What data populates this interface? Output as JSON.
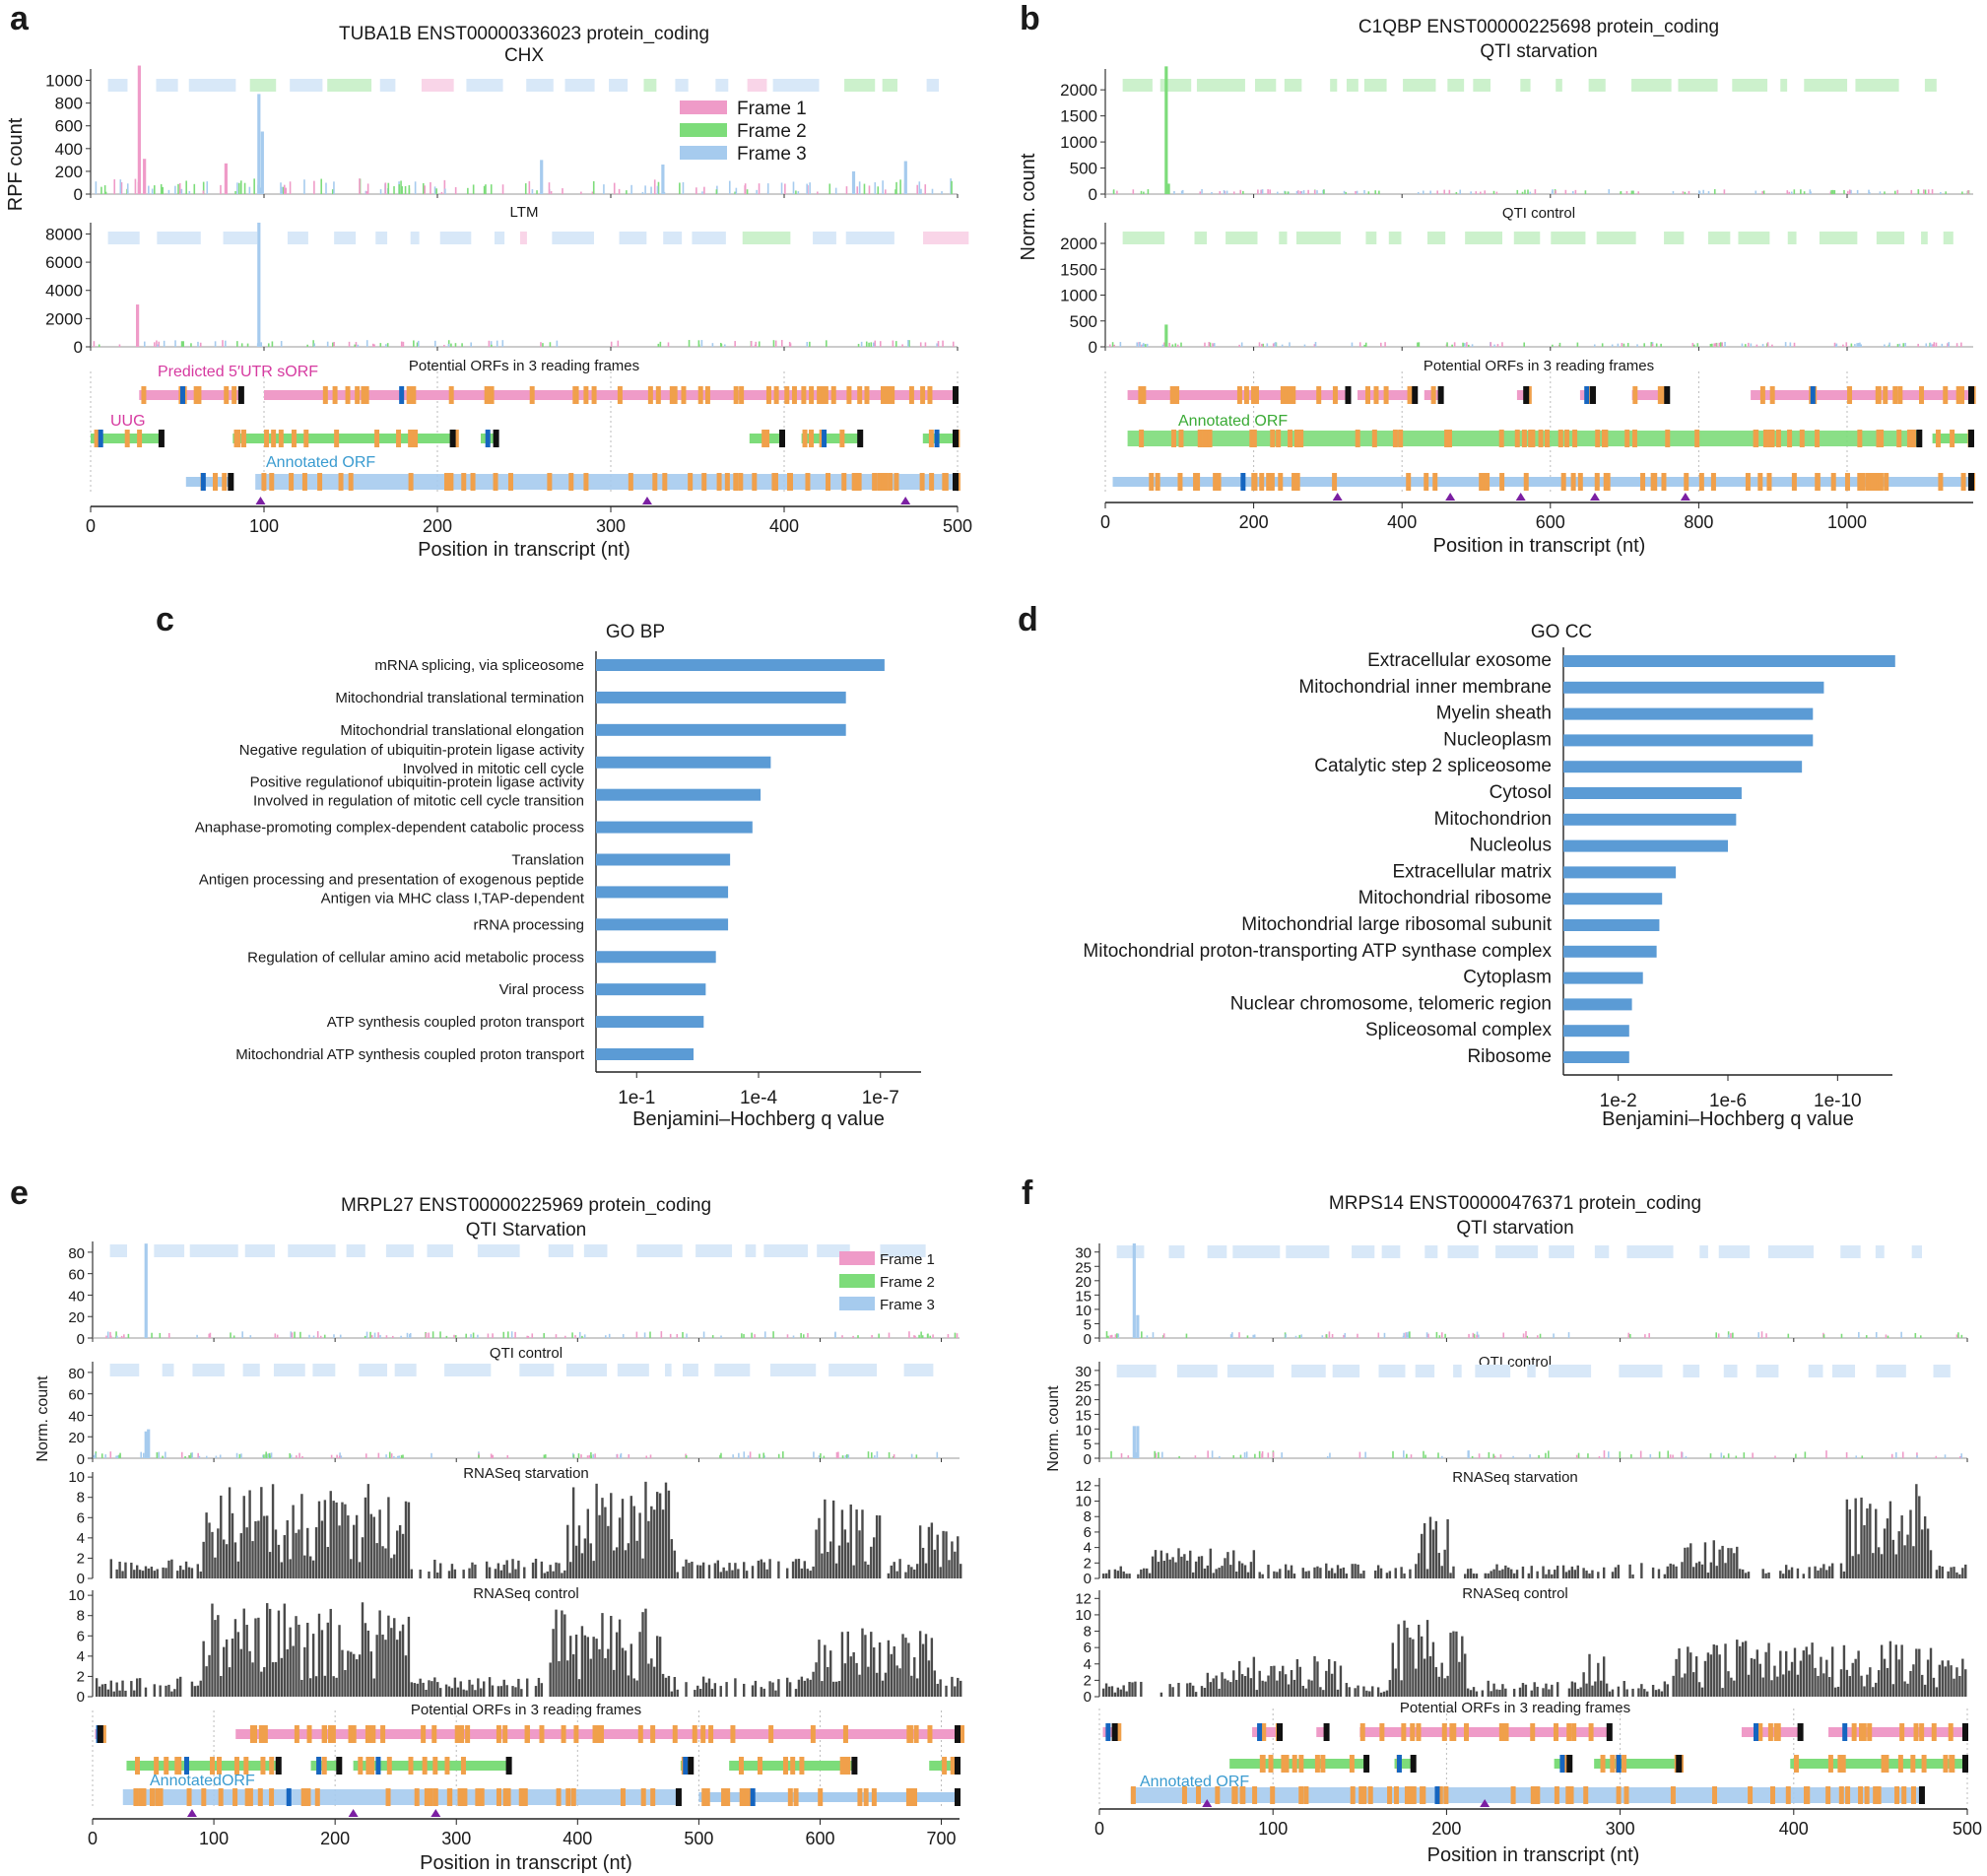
{
  "figure": {
    "panel_labels": [
      "a",
      "b",
      "c",
      "d",
      "e",
      "f"
    ]
  },
  "colors": {
    "frame1": "#ef9bc8",
    "frame2": "#7ddc7a",
    "frame3": "#a6cbee",
    "frame1_light": "#f9d5e8",
    "frame2_light": "#ccf1cc",
    "frame3_light": "#d8e8f8",
    "go_bar": "#5b9bd5",
    "codon": "#f0a04b",
    "stop": "#111111",
    "start": "#1565c0",
    "rna": "#2b2b2b",
    "marker": "#7b1fa2",
    "pink_text": "#d63aa0",
    "green_text": "#3aaa35",
    "blue_text": "#3a9bd0"
  },
  "chart_data": [
    {
      "panel": "a",
      "type": "bar",
      "title": "TUBA1B ENST00000336023 protein_coding",
      "subtitle": "CHX",
      "xlabel": "Position in transcript (nt)",
      "ylabel": "RPF count",
      "xlim": [
        0,
        500
      ],
      "xticks": [
        0,
        100,
        200,
        300,
        400,
        500
      ],
      "legend": [
        "Frame 1",
        "Frame 2",
        "Frame 3"
      ],
      "legend_position": "top-right",
      "tracks": [
        {
          "name": "CHX",
          "ylim": [
            0,
            1100
          ],
          "yticks": [
            0,
            200,
            400,
            600,
            800,
            1000
          ],
          "peaks": [
            {
              "x": 28,
              "y": 1130,
              "frame": 1
            },
            {
              "x": 31,
              "y": 310,
              "frame": 1
            },
            {
              "x": 78,
              "y": 270,
              "frame": 1
            },
            {
              "x": 97,
              "y": 880,
              "frame": 3
            },
            {
              "x": 99,
              "y": 550,
              "frame": 3
            },
            {
              "x": 260,
              "y": 300,
              "frame": 3
            },
            {
              "x": 330,
              "y": 260,
              "frame": 3
            },
            {
              "x": 440,
              "y": 200,
              "frame": 3
            },
            {
              "x": 470,
              "y": 290,
              "frame": 3
            }
          ]
        },
        {
          "name": "LTM",
          "ylim": [
            0,
            8800
          ],
          "yticks": [
            0,
            2000,
            4000,
            6000,
            8000
          ],
          "peaks": [
            {
              "x": 27,
              "y": 3000,
              "frame": 1
            },
            {
              "x": 97,
              "y": 8800,
              "frame": 3
            },
            {
              "x": 53,
              "y": 400,
              "frame": 2
            }
          ]
        }
      ],
      "orf_header": "Potential ORFs in 3 reading frames",
      "annotations": [
        "Predicted 5′UTR sORF",
        "UUG",
        "Annotated ORF"
      ],
      "markers": [
        98,
        321,
        470
      ]
    },
    {
      "panel": "b",
      "type": "bar",
      "title": "C1QBP ENST00000225698 protein_coding",
      "subtitle": "QTI starvation",
      "xlabel": "Position in transcript (nt)",
      "ylabel": "Norm. count",
      "xlim": [
        0,
        1170
      ],
      "xticks": [
        0,
        200,
        400,
        600,
        800,
        1000
      ],
      "tracks": [
        {
          "name": "QTI starvation",
          "ylim": [
            0,
            2400
          ],
          "yticks": [
            0,
            500,
            1000,
            1500,
            2000
          ],
          "peaks": [
            {
              "x": 82,
              "y": 2450,
              "frame": 2
            },
            {
              "x": 85,
              "y": 200,
              "frame": 2
            }
          ]
        },
        {
          "name": "QTI control",
          "ylim": [
            0,
            2400
          ],
          "yticks": [
            0,
            500,
            1000,
            1500,
            2000
          ],
          "peaks": [
            {
              "x": 82,
              "y": 430,
              "frame": 2
            }
          ]
        }
      ],
      "orf_header": "Potential ORFs in 3 reading frames",
      "annotations": [
        "Annotated ORF"
      ],
      "markers": [
        313,
        465,
        560,
        660,
        782
      ]
    },
    {
      "panel": "c",
      "type": "bar",
      "orientation": "horizontal",
      "title": "GO BP",
      "xlabel": "Benjamini–Hochberg q value",
      "xticks": [
        "1e-1",
        "1e-4",
        "1e-7"
      ],
      "xlim_neglog10": [
        0,
        8
      ],
      "categories": [
        "mRNA splicing, via spliceosome",
        "Mitochondrial translational termination",
        "Mitochondrial translational elongation",
        "Negative regulation of ubiquitin-protein ligase activity\nInvolved in mitotic cell cycle",
        "Positive regulationof ubiquitin-protein ligase activity\nInvolved in regulation of mitotic cell cycle transition",
        "Anaphase-promoting complex-dependent catabolic process",
        "Translation",
        "Antigen processing and presentation of exogenous peptide\nAntigen via MHC class I,TAP-dependent",
        "rRNA processing",
        "Regulation of cellular amino acid metabolic process",
        "Viral process",
        "ATP synthesis coupled proton transport",
        "Mitochondrial ATP synthesis coupled proton transport"
      ],
      "values_neglog10": [
        7.1,
        6.15,
        6.15,
        4.3,
        4.05,
        3.85,
        3.3,
        3.25,
        3.25,
        2.95,
        2.7,
        2.65,
        2.4
      ]
    },
    {
      "panel": "d",
      "type": "bar",
      "orientation": "horizontal",
      "title": "GO CC",
      "xlabel": "Benjamini–Hochberg q value",
      "xticks": [
        "1e-2",
        "1e-6",
        "1e-10"
      ],
      "xlim_neglog10": [
        0,
        12
      ],
      "categories": [
        "Extracellular exosome",
        "Mitochondrial inner membrane",
        "Myelin sheath",
        "Nucleoplasm",
        "Catalytic step 2 spliceosome",
        "Cytosol",
        "Mitochondrion",
        "Nucleolus",
        "Extracellular matrix",
        "Mitochondrial ribosome",
        "Mitochondrial large ribosomal subunit",
        "Mitochondrial proton-transporting  ATP synthase complex",
        "Cytoplasm",
        "Nuclear chromosome, telomeric region",
        "Spliceosomal complex",
        "Ribosome"
      ],
      "values_neglog10": [
        12.1,
        9.5,
        9.1,
        9.1,
        8.7,
        6.5,
        6.3,
        6.0,
        4.1,
        3.6,
        3.5,
        3.4,
        2.9,
        2.5,
        2.4,
        2.4
      ]
    },
    {
      "panel": "e",
      "type": "bar",
      "title": "MRPL27 ENST00000225969 protein_coding",
      "subtitle": "QTI Starvation",
      "xlabel": "Position in transcript (nt)",
      "ylabel": "Norm. count",
      "xlim": [
        0,
        715
      ],
      "xticks": [
        0,
        100,
        200,
        300,
        400,
        500,
        600,
        700
      ],
      "legend": [
        "Frame 1",
        "Frame 2",
        "Frame 3"
      ],
      "legend_position": "top-right",
      "tracks": [
        {
          "name": "QTI Starvation",
          "ylim": [
            0,
            90
          ],
          "yticks": [
            0,
            20,
            40,
            60,
            80
          ],
          "peaks": [
            {
              "x": 44,
              "y": 88,
              "frame": 3
            }
          ]
        },
        {
          "name": "QTI control",
          "ylim": [
            0,
            90
          ],
          "yticks": [
            0,
            20,
            40,
            60,
            80
          ],
          "peaks": [
            {
              "x": 44,
              "y": 25,
              "frame": 3
            },
            {
              "x": 46,
              "y": 27,
              "frame": 3
            }
          ]
        },
        {
          "name": "RNASeq starvation",
          "ylim": [
            0,
            10.5
          ],
          "yticks": [
            0,
            2,
            4,
            6,
            8,
            10
          ],
          "rna": true
        },
        {
          "name": "RNASeq control",
          "ylim": [
            0,
            10.5
          ],
          "yticks": [
            0,
            2,
            4,
            6,
            8,
            10
          ],
          "rna": true
        }
      ],
      "orf_header": "Potential ORFs in 3 reading frames",
      "annotations": [
        "AnnotatedORF"
      ],
      "markers": [
        82,
        215,
        283
      ]
    },
    {
      "panel": "f",
      "type": "bar",
      "title": "MRPS14 ENST00000476371 protein_coding",
      "subtitle": "QTI starvation",
      "xlabel": "Position in transcript (nt)",
      "ylabel": "Norm. count",
      "xlim": [
        0,
        500
      ],
      "xticks": [
        0,
        100,
        200,
        300,
        400,
        500
      ],
      "tracks": [
        {
          "name": "QTI starvation",
          "ylim": [
            0,
            33
          ],
          "yticks": [
            0,
            5,
            10,
            15,
            20,
            25,
            30
          ],
          "peaks": [
            {
              "x": 20,
              "y": 33,
              "frame": 3
            },
            {
              "x": 22,
              "y": 8,
              "frame": 3
            }
          ]
        },
        {
          "name": "QTI control",
          "ylim": [
            0,
            33
          ],
          "yticks": [
            0,
            5,
            10,
            15,
            20,
            25,
            30
          ],
          "peaks": [
            {
              "x": 20,
              "y": 11,
              "frame": 3
            },
            {
              "x": 22,
              "y": 11,
              "frame": 3
            }
          ]
        },
        {
          "name": "RNASeq starvation",
          "ylim": [
            0,
            13
          ],
          "yticks": [
            0,
            2,
            4,
            6,
            8,
            10,
            12
          ],
          "rna": true
        },
        {
          "name": "RNASeq control",
          "ylim": [
            0,
            13
          ],
          "yticks": [
            0,
            2,
            4,
            6,
            8,
            10,
            12
          ],
          "rna": true
        }
      ],
      "orf_header": "Potential ORFs in 3 reading frames",
      "annotations": [
        "Annotated ORF"
      ],
      "markers": [
        62,
        222
      ]
    }
  ]
}
